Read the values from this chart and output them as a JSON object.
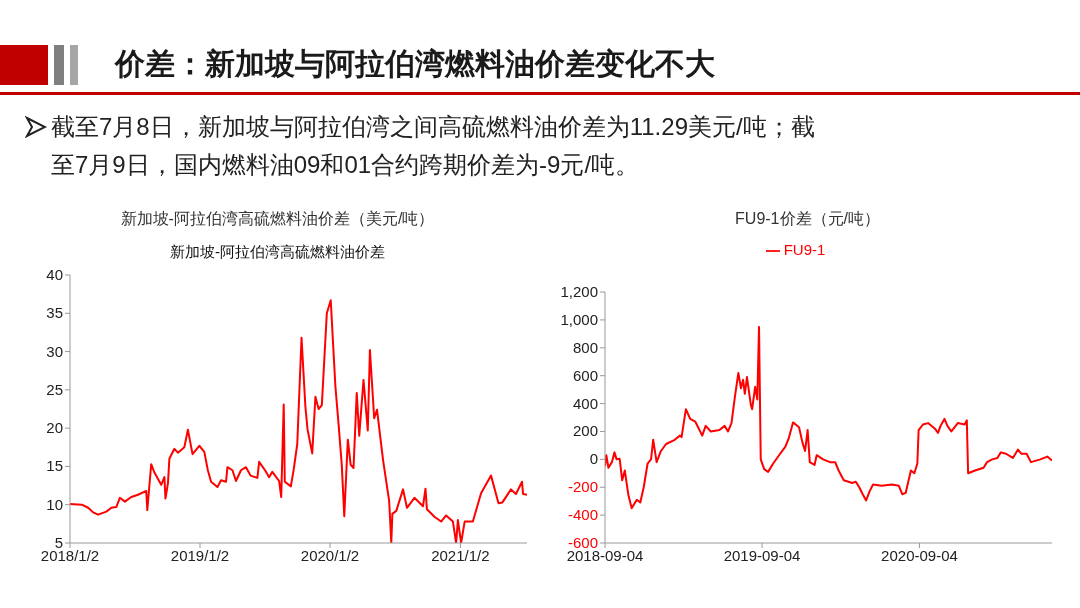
{
  "chart_data": [
    {
      "type": "other",
      "title": "价差：新加坡与阿拉伯湾燃料油价差变化不大",
      "annotations": [
        "截至7月8日，新加坡与阿拉伯湾之间高硫燃料油价差为11.29美元/吨；截至7月9日，国内燃料油09和01合约跨期价差为-9元/吨。"
      ]
    },
    {
      "type": "line",
      "title": "新加坡-阿拉伯湾高硫燃料油价差（美元/吨）",
      "subtitle": "新加坡-阿拉伯湾高硫燃料油价差",
      "x": [
        "2018-01-02",
        "2018-02-04",
        "2018-02-22",
        "2018-03-08",
        "2018-03-22",
        "2018-04-14",
        "2018-04-28",
        "2018-05-12",
        "2018-05-22",
        "2018-06-05",
        "2018-06-23",
        "2018-07-12",
        "2018-08-04",
        "2018-08-07",
        "2018-08-18",
        "2018-08-27",
        "2018-09-15",
        "2018-09-24",
        "2018-09-27",
        "2018-10-04",
        "2018-10-08",
        "2018-10-22",
        "2018-11-01",
        "2018-11-19",
        "2018-11-29",
        "2018-12-12",
        "2018-12-31",
        "2019-01-14",
        "2019-01-24",
        "2019-02-02",
        "2019-02-20",
        "2019-03-02",
        "2019-03-16",
        "2019-03-20",
        "2019-04-03",
        "2019-04-13",
        "2019-04-27",
        "2019-05-11",
        "2019-05-24",
        "2019-06-12",
        "2019-06-17",
        "2019-07-05",
        "2019-07-15",
        "2019-07-24",
        "2019-08-12",
        "2019-08-18",
        "2019-08-25",
        "2019-08-28",
        "2019-09-14",
        "2019-09-22",
        "2019-10-02",
        "2019-10-14",
        "2019-10-25",
        "2019-10-31",
        "2019-11-13",
        "2019-11-22",
        "2019-12-01",
        "2019-12-10",
        "2019-12-24",
        "2020-01-04",
        "2020-01-17",
        "2020-01-26",
        "2020-02-04",
        "2020-02-11",
        "2020-02-21",
        "2020-02-29",
        "2020-03-08",
        "2020-03-17",
        "2020-03-24",
        "2020-04-05",
        "2020-04-17",
        "2020-04-23",
        "2020-05-05",
        "2020-05-13",
        "2020-05-30",
        "2020-06-16",
        "2020-06-22",
        "2020-06-25",
        "2020-07-06",
        "2020-07-25",
        "2020-08-05",
        "2020-08-26",
        "2020-09-19",
        "2020-09-26",
        "2020-09-30",
        "2020-10-22",
        "2020-11-09",
        "2020-11-23",
        "2020-12-12",
        "2020-12-21",
        "2020-12-26",
        "2021-01-04",
        "2021-01-14",
        "2021-02-06",
        "2021-03-01",
        "2021-03-29",
        "2021-04-19",
        "2021-04-30",
        "2021-05-24",
        "2021-06-07",
        "2021-06-24",
        "2021-06-27",
        "2021-07-08"
      ],
      "series": [
        {
          "color": "#ff0000",
          "values": [
            10.1,
            10.0,
            9.6,
            9.0,
            8.7,
            9.1,
            9.6,
            9.7,
            10.9,
            10.4,
            11.0,
            11.3,
            11.8,
            9.3,
            15.3,
            14.2,
            12.6,
            13.6,
            10.8,
            12.8,
            16.0,
            17.3,
            16.8,
            17.5,
            19.8,
            16.6,
            17.7,
            16.9,
            14.5,
            13.0,
            12.3,
            13.2,
            13.0,
            14.9,
            14.5,
            13.1,
            14.5,
            14.9,
            13.8,
            13.5,
            15.6,
            14.4,
            13.6,
            14.3,
            13.1,
            11.0,
            23.1,
            13.0,
            12.4,
            14.6,
            17.9,
            31.8,
            22.7,
            19.8,
            16.7,
            24.1,
            22.5,
            23.0,
            35.0,
            36.7,
            25.5,
            20.5,
            15.2,
            8.5,
            18.5,
            15.2,
            14.8,
            24.6,
            19.0,
            26.3,
            19.7,
            30.2,
            21.3,
            22.4,
            15.8,
            10.5,
            5.0,
            8.8,
            9.2,
            12.0,
            9.6,
            10.9,
            9.8,
            12.1,
            9.4,
            8.4,
            7.8,
            8.6,
            7.8,
            5.0,
            8.0,
            5.0,
            7.8,
            7.8,
            11.5,
            13.8,
            10.2,
            10.3,
            12.0,
            11.4,
            13.0,
            11.4,
            11.3
          ]
        }
      ],
      "xlim": [
        "2018-01-02",
        "2021-07-08"
      ],
      "xticks": [
        {
          "value": "2018-01-02",
          "label": "2018/1/2"
        },
        {
          "value": "2019-01-02",
          "label": "2019/1/2"
        },
        {
          "value": "2020-01-02",
          "label": "2020/1/2"
        },
        {
          "value": "2021-01-02",
          "label": "2021/1/2"
        }
      ],
      "ylim": [
        5,
        40
      ],
      "yticks": [
        5,
        10,
        15,
        20,
        25,
        30,
        35,
        40
      ]
    },
    {
      "type": "line",
      "title": "FU9-1价差（元/吨）",
      "legend": "top",
      "x": [
        "2018-09-04",
        "2018-09-07",
        "2018-09-12",
        "2018-09-20",
        "2018-09-26",
        "2018-10-01",
        "2018-10-08",
        "2018-10-14",
        "2018-10-20",
        "2018-10-28",
        "2018-11-05",
        "2018-11-17",
        "2018-11-25",
        "2018-12-03",
        "2018-12-12",
        "2018-12-20",
        "2018-12-25",
        "2019-01-02",
        "2019-01-12",
        "2019-01-24",
        "2019-02-13",
        "2019-02-25",
        "2019-03-01",
        "2019-03-11",
        "2019-03-21",
        "2019-04-02",
        "2019-04-18",
        "2019-04-26",
        "2019-05-08",
        "2019-05-28",
        "2019-06-09",
        "2019-06-17",
        "2019-06-25",
        "2019-07-03",
        "2019-07-11",
        "2019-07-17",
        "2019-07-22",
        "2019-07-26",
        "2019-07-31",
        "2019-08-09",
        "2019-08-12",
        "2019-08-19",
        "2019-08-24",
        "2019-08-28",
        "2019-09-01",
        "2019-09-09",
        "2019-09-18",
        "2019-09-30",
        "2019-10-16",
        "2019-10-28",
        "2019-11-05",
        "2019-11-15",
        "2019-11-29",
        "2019-12-07",
        "2019-12-13",
        "2019-12-19",
        "2019-12-24",
        "2020-01-04",
        "2020-01-09",
        "2020-01-24",
        "2020-02-09",
        "2020-02-21",
        "2020-02-29",
        "2020-03-12",
        "2020-04-01",
        "2020-04-09",
        "2020-04-17",
        "2020-04-25",
        "2020-05-03",
        "2020-05-11",
        "2020-05-19",
        "2020-06-08",
        "2020-07-02",
        "2020-07-18",
        "2020-07-26",
        "2020-08-03",
        "2020-08-15",
        "2020-08-23",
        "2020-08-30",
        "2020-09-02",
        "2020-09-12",
        "2020-09-24",
        "2020-10-10",
        "2020-10-17",
        "2020-10-23",
        "2020-11-01",
        "2020-11-08",
        "2020-11-17",
        "2020-12-02",
        "2020-12-18",
        "2020-12-23",
        "2020-12-26",
        "2021-01-11",
        "2021-01-31",
        "2021-02-08",
        "2021-02-20",
        "2021-03-04",
        "2021-03-12",
        "2021-03-24",
        "2021-04-09",
        "2021-04-21",
        "2021-04-29",
        "2021-05-11",
        "2021-05-21",
        "2021-06-12",
        "2021-06-28",
        "2021-07-09"
      ],
      "series": [
        {
          "name": "FU9-1",
          "color": "#ff0000",
          "values": [
            -50,
            30,
            -60,
            -20,
            50,
            0,
            5,
            -150,
            -80,
            -250,
            -350,
            -290,
            -310,
            -200,
            -30,
            0,
            140,
            -20,
            60,
            110,
            140,
            170,
            160,
            360,
            290,
            270,
            170,
            240,
            200,
            210,
            240,
            200,
            260,
            450,
            620,
            510,
            570,
            470,
            590,
            390,
            360,
            520,
            430,
            950,
            0,
            -70,
            -90,
            -30,
            40,
            90,
            150,
            265,
            230,
            120,
            60,
            210,
            -20,
            -40,
            30,
            0,
            -20,
            -20,
            -80,
            -150,
            -170,
            -160,
            -200,
            -250,
            -295,
            -230,
            -180,
            -190,
            -180,
            -190,
            -250,
            -240,
            -80,
            -100,
            -30,
            210,
            250,
            260,
            220,
            190,
            240,
            290,
            240,
            200,
            260,
            250,
            280,
            -100,
            -80,
            -60,
            -20,
            0,
            10,
            50,
            40,
            10,
            70,
            40,
            40,
            -20,
            0,
            20,
            -9
          ]
        }
      ],
      "xlim": [
        "2018-09-04",
        "2021-07-09"
      ],
      "xticks": [
        {
          "value": "2018-09-04",
          "label": "2018-09-04"
        },
        {
          "value": "2019-09-04",
          "label": "2019-09-04"
        },
        {
          "value": "2020-09-04",
          "label": "2020-09-04"
        }
      ],
      "ylim": [
        -600,
        1200
      ],
      "yticks": [
        -600,
        -400,
        -200,
        0,
        200,
        400,
        600,
        800,
        {
          "value": 1000,
          "label": "1,000"
        },
        {
          "value": 1200,
          "label": "1,200"
        }
      ]
    }
  ]
}
